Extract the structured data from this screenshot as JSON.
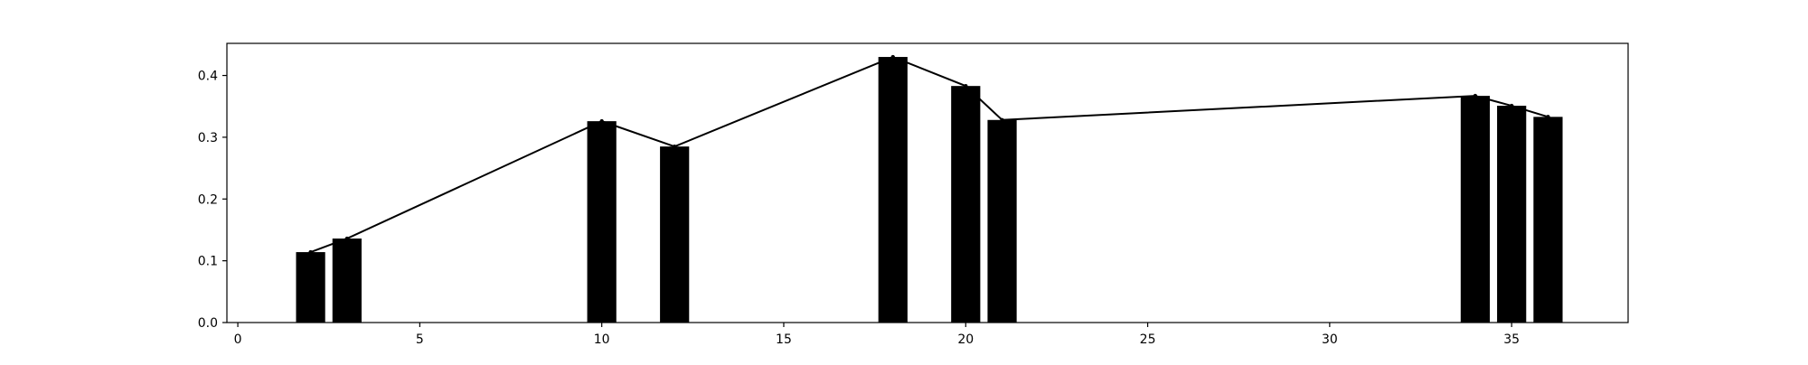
{
  "chart_data": {
    "type": "bar",
    "title": "",
    "xlabel": "",
    "ylabel": "",
    "xlim": [
      -0.3,
      38.2
    ],
    "ylim": [
      0.0,
      0.452
    ],
    "x_ticks": [
      0,
      5,
      10,
      15,
      20,
      25,
      30,
      35
    ],
    "y_ticks": [
      0.0,
      0.1,
      0.2,
      0.3,
      0.4
    ],
    "x_tick_labels": [
      "0",
      "5",
      "10",
      "15",
      "20",
      "25",
      "30",
      "35"
    ],
    "y_tick_labels": [
      "0.0",
      "0.1",
      "0.2",
      "0.3",
      "0.4"
    ],
    "grid": false,
    "series": [
      {
        "type": "bar",
        "x": [
          2,
          3,
          10,
          12,
          18,
          20,
          21,
          34,
          35,
          36
        ],
        "values": [
          0.114,
          0.136,
          0.326,
          0.285,
          0.43,
          0.383,
          0.328,
          0.367,
          0.351,
          0.333
        ],
        "color": "#000000"
      },
      {
        "type": "line",
        "x": [
          2,
          3,
          10,
          12,
          18,
          20,
          21,
          34,
          35,
          36
        ],
        "values": [
          0.114,
          0.136,
          0.326,
          0.285,
          0.43,
          0.383,
          0.328,
          0.367,
          0.351,
          0.333
        ],
        "color": "#000000"
      }
    ],
    "colors": {
      "bar": "#000000",
      "line": "#000000",
      "axis": "#000000",
      "background": "#ffffff"
    }
  }
}
